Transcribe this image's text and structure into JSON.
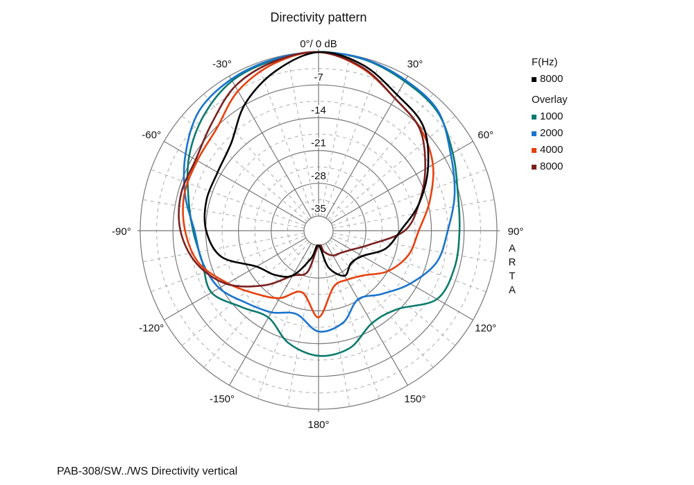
{
  "chart_data": {
    "type": "polar",
    "title": "Directivity pattern",
    "top_label": "0°/ 0 dB",
    "caption": "PAB-308/SW../WS  Directivity vertical",
    "watermark": "ARTA",
    "radial_axis": {
      "unit": "dB",
      "range": [
        -35,
        0
      ],
      "ticks": [
        -7,
        -14,
        -21,
        -28,
        -35
      ]
    },
    "angle_ticks": [
      {
        "angle": -30,
        "label": "-30°"
      },
      {
        "angle": 30,
        "label": "30°"
      },
      {
        "angle": -60,
        "label": "-60°"
      },
      {
        "angle": 60,
        "label": "60°"
      },
      {
        "angle": -90,
        "label": "-90°"
      },
      {
        "angle": 90,
        "label": "90°"
      },
      {
        "angle": -120,
        "label": "-120°"
      },
      {
        "angle": 120,
        "label": "120°"
      },
      {
        "angle": -150,
        "label": "-150°"
      },
      {
        "angle": 150,
        "label": "150°"
      },
      {
        "angle": 180,
        "label": "180°"
      }
    ],
    "grid": true,
    "legend": {
      "position": "right",
      "main_header": "F(Hz)",
      "overlay_header": "Overlay"
    },
    "angles": [
      -165,
      -150,
      -135,
      -120,
      -105,
      -90,
      -75,
      -60,
      -45,
      -30,
      -15,
      0,
      15,
      30,
      45,
      60,
      75,
      90,
      105,
      120,
      135,
      150,
      165,
      180
    ],
    "series": [
      {
        "name": "1000",
        "group": "overlay",
        "color": "#0a7a6e",
        "values": [
          -13.3,
          -16.7,
          -15,
          -11.7,
          -12.4,
          -11.3,
          -9.3,
          -6.2,
          -3.4,
          -1.2,
          -0.5,
          0,
          -0.3,
          -1.3,
          -2.2,
          -5,
          -7.3,
          -8,
          -8,
          -8.9,
          -14.4,
          -15.3,
          -12.2,
          -11.4
        ]
      },
      {
        "name": "2000",
        "group": "overlay",
        "color": "#1874cd",
        "values": [
          -19.7,
          -18,
          -16.3,
          -13.6,
          -12.4,
          -11.6,
          -8.6,
          -5.3,
          -2,
          -0.8,
          -0.3,
          0,
          -0.2,
          -1,
          -2,
          -5.5,
          -8,
          -10.5,
          -12,
          -15.5,
          -19,
          -21.2,
          -17.8,
          -16.6
        ]
      },
      {
        "name": "4000",
        "group": "overlay",
        "color": "#e8400c",
        "values": [
          -24.5,
          -21.5,
          -19.1,
          -15.7,
          -11.6,
          -9.6,
          -8.4,
          -8.2,
          -7.3,
          -3.7,
          -1.2,
          0,
          -2.2,
          -5.5,
          -7.3,
          -9.9,
          -13.5,
          -16.7,
          -18.2,
          -20.9,
          -24.6,
          -26,
          -25.7,
          -19.6
        ]
      },
      {
        "name": "8000",
        "group": "overlay",
        "color": "#7a2020",
        "values": [
          -29,
          -27,
          -21.6,
          -15.4,
          -11.1,
          -8.6,
          -7.7,
          -7.8,
          -5.8,
          -2.5,
          -0.8,
          0,
          -2,
          -5.5,
          -7.5,
          -11.8,
          -15.9,
          -19.7,
          -26.7,
          -30,
          -31.4,
          -32,
          -33.4,
          -35
        ]
      },
      {
        "name": "8000",
        "group": "main",
        "color": "#000000",
        "values": [
          -32,
          -27.1,
          -24.8,
          -22.8,
          -16.6,
          -14.1,
          -13.3,
          -13.2,
          -11.7,
          -6.8,
          -2.8,
          0,
          -1.5,
          -4.6,
          -6.5,
          -11.1,
          -15.9,
          -20.6,
          -23.3,
          -27.3,
          -28.3,
          -27,
          -30,
          -35
        ]
      }
    ]
  }
}
